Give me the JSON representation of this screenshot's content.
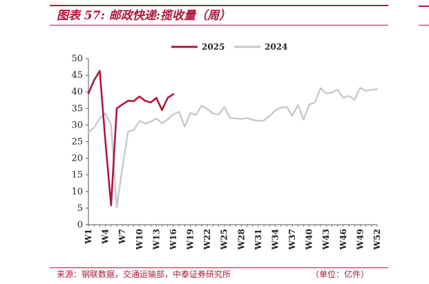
{
  "header": {
    "title": "图表 57:  邮政快递:揽收量（周）"
  },
  "footer": {
    "source": "来源：钢联数据，交通运输部，中泰证券研究所",
    "unit": "（单位：亿件）"
  },
  "colors": {
    "accent": "#b0163a",
    "series_2025": "#b0163a",
    "series_2024": "#c8c8c8"
  },
  "chart_data": {
    "type": "line",
    "title": "",
    "xlabel": "",
    "ylabel": "",
    "ylim": [
      0,
      50
    ],
    "yticks": [
      0,
      5,
      10,
      15,
      20,
      25,
      30,
      35,
      40,
      45,
      50
    ],
    "xtick_labels": [
      "W1",
      "W4",
      "W7",
      "W10",
      "W13",
      "W16",
      "W19",
      "W22",
      "W25",
      "W28",
      "W31",
      "W34",
      "W37",
      "W40",
      "W43",
      "W46",
      "W49",
      "W52"
    ],
    "grid": false,
    "legend_position": "top-center",
    "series": [
      {
        "name": "2025",
        "color": "#b0163a",
        "x": [
          1,
          2,
          3,
          4,
          5,
          6,
          7,
          8,
          9,
          10,
          11,
          12,
          13,
          14,
          15,
          16
        ],
        "values": [
          39.5,
          43.5,
          46.3,
          25.0,
          5.8,
          35.0,
          36.2,
          37.3,
          37.2,
          38.6,
          37.3,
          36.8,
          38.2,
          34.5,
          38.2,
          39.3
        ]
      },
      {
        "name": "2024",
        "color": "#c8c8c8",
        "x": [
          1,
          2,
          3,
          4,
          5,
          6,
          7,
          8,
          9,
          10,
          11,
          12,
          13,
          14,
          15,
          16,
          17,
          18,
          19,
          20,
          21,
          22,
          23,
          24,
          25,
          26,
          27,
          28,
          29,
          30,
          31,
          32,
          33,
          34,
          35,
          36,
          37,
          38,
          39,
          40,
          41,
          42,
          43,
          44,
          45,
          46,
          47,
          48,
          49,
          50,
          51,
          52
        ],
        "values": [
          27.8,
          29.2,
          32.0,
          33.5,
          30.0,
          5.3,
          17.2,
          28.0,
          28.5,
          31.2,
          30.4,
          31.0,
          32.0,
          30.5,
          31.7,
          33.2,
          34.0,
          29.5,
          33.6,
          33.0,
          35.8,
          34.8,
          33.5,
          33.2,
          35.4,
          32.2,
          32.0,
          31.8,
          32.1,
          31.6,
          31.2,
          31.4,
          32.7,
          34.4,
          35.2,
          35.5,
          32.8,
          36.0,
          31.6,
          36.2,
          36.8,
          41.1,
          39.5,
          39.8,
          40.6,
          38.2,
          38.8,
          37.6,
          41.2,
          40.3,
          40.6,
          40.8
        ]
      }
    ]
  }
}
